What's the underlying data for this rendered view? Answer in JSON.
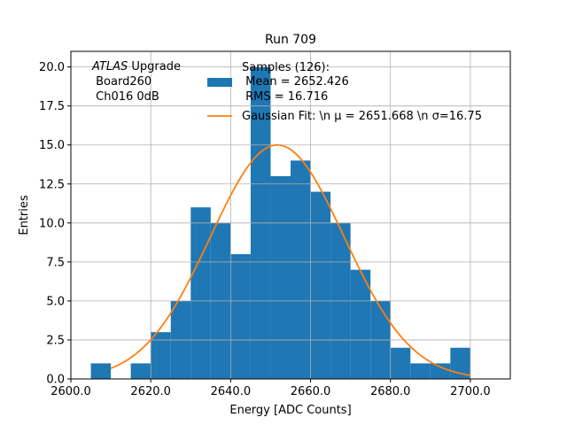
{
  "chart_data": {
    "type": "bar",
    "title": "Run 709",
    "xlabel": "Energy [ADC Counts]",
    "ylabel": "Entries",
    "xlim": [
      2600,
      2710
    ],
    "ylim": [
      0,
      21
    ],
    "grid": true,
    "xticks": [
      2600.0,
      2620.0,
      2640.0,
      2660.0,
      2680.0,
      2700.0
    ],
    "xtick_labels": [
      "2600.0",
      "2620.0",
      "2640.0",
      "2660.0",
      "2680.0",
      "2700.0"
    ],
    "yticks": [
      0,
      2.5,
      5,
      7.5,
      10,
      12.5,
      15,
      17.5,
      20
    ],
    "ytick_labels": [
      "0.0",
      "2.5",
      "5.0",
      "7.5",
      "10.0",
      "12.5",
      "15.0",
      "17.5",
      "20.0"
    ],
    "bin_width": 5,
    "bins": [
      {
        "x": 2605,
        "count": 1
      },
      {
        "x": 2610,
        "count": 0
      },
      {
        "x": 2615,
        "count": 1
      },
      {
        "x": 2620,
        "count": 3
      },
      {
        "x": 2625,
        "count": 5
      },
      {
        "x": 2630,
        "count": 11
      },
      {
        "x": 2635,
        "count": 10
      },
      {
        "x": 2640,
        "count": 8
      },
      {
        "x": 2645,
        "count": 20
      },
      {
        "x": 2650,
        "count": 13
      },
      {
        "x": 2655,
        "count": 14
      },
      {
        "x": 2660,
        "count": 12
      },
      {
        "x": 2665,
        "count": 10
      },
      {
        "x": 2670,
        "count": 7
      },
      {
        "x": 2675,
        "count": 5
      },
      {
        "x": 2680,
        "count": 2
      },
      {
        "x": 2685,
        "count": 1
      },
      {
        "x": 2690,
        "count": 1
      },
      {
        "x": 2695,
        "count": 2
      }
    ],
    "gaussian_fit": {
      "amplitude": 15.0,
      "mean": 2651.668,
      "sigma": 16.75,
      "x_range": [
        2610,
        2700
      ]
    },
    "series_colors": {
      "histogram": "#1f77b4",
      "fit": "#ff7f0e"
    },
    "legend": {
      "placement": "top-right",
      "entries": [
        {
          "lines": [
            "Samples (126):",
            " Mean = 2652.426",
            " RMS = 16.716"
          ],
          "marker": "patch"
        },
        {
          "lines": [
            "Gaussian Fit: \\n μ = 2651.668 \\n σ=16.75"
          ],
          "marker": "line"
        }
      ]
    },
    "annotation": {
      "italic_part": "ATLAS",
      "line1_rest": " Upgrade",
      "line2": " Board260",
      "line3": " Ch016 0dB"
    }
  }
}
